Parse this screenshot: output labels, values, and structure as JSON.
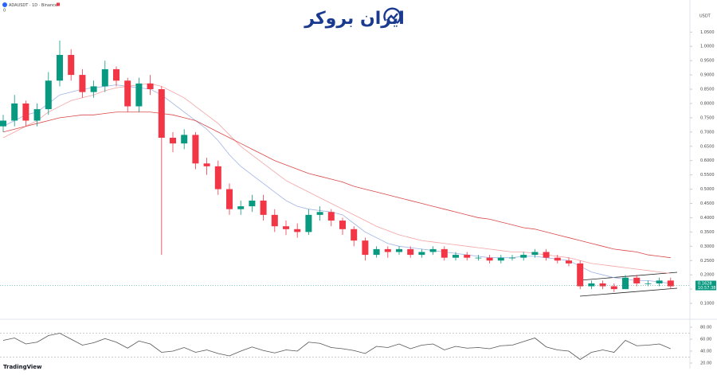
{
  "chart_data": [
    {
      "type": "candlestick",
      "title": "ADAUSDT · 1D · Binance",
      "subtitle": "0",
      "currency": "USDT",
      "brand": "ایران بروکر",
      "footer": "TradingView",
      "last_price": 0.1628,
      "countdown": "10:57:38",
      "ylim": [
        0.05,
        1.14
      ],
      "yticks": [
        {
          "value": 1.05,
          "label": "1.0500"
        },
        {
          "value": 1.0,
          "label": "1.0000"
        },
        {
          "value": 0.95,
          "label": "0.9500"
        },
        {
          "value": 0.9,
          "label": "0.9000"
        },
        {
          "value": 0.85,
          "label": "0.8500"
        },
        {
          "value": 0.8,
          "label": "0.8000"
        },
        {
          "value": 0.75,
          "label": "0.7500"
        },
        {
          "value": 0.7,
          "label": "0.7000"
        },
        {
          "value": 0.65,
          "label": "0.6500"
        },
        {
          "value": 0.6,
          "label": "0.6000"
        },
        {
          "value": 0.55,
          "label": "0.5500"
        },
        {
          "value": 0.5,
          "label": "0.5000"
        },
        {
          "value": 0.45,
          "label": "0.4500"
        },
        {
          "value": 0.4,
          "label": "0.4000"
        },
        {
          "value": 0.35,
          "label": "0.3500"
        },
        {
          "value": 0.3,
          "label": "0.3000"
        },
        {
          "value": 0.25,
          "label": "0.2500"
        },
        {
          "value": 0.2,
          "label": "0.2000"
        },
        {
          "value": 0.15,
          "label": "0.1500"
        },
        {
          "value": 0.1,
          "label": "0.1000"
        }
      ],
      "up_color": "#089981",
      "down_color": "#f23645",
      "open": [
        0.72,
        0.74,
        0.8,
        0.74,
        0.78,
        0.88,
        0.97,
        0.9,
        0.84,
        0.86,
        0.92,
        0.88,
        0.79,
        0.87,
        0.85,
        0.68,
        0.66,
        0.69,
        0.59,
        0.58,
        0.5,
        0.43,
        0.44,
        0.46,
        0.41,
        0.37,
        0.36,
        0.35,
        0.41,
        0.42,
        0.39,
        0.36,
        0.32,
        0.27,
        0.29,
        0.28,
        0.29,
        0.27,
        0.28,
        0.29,
        0.26,
        0.27,
        0.26,
        0.26,
        0.25,
        0.26,
        0.26,
        0.27,
        0.28,
        0.26,
        0.25,
        0.24,
        0.16,
        0.17,
        0.16,
        0.15,
        0.19,
        0.17,
        0.17,
        0.18
      ],
      "close": [
        0.74,
        0.8,
        0.74,
        0.78,
        0.88,
        0.97,
        0.9,
        0.84,
        0.86,
        0.92,
        0.88,
        0.79,
        0.87,
        0.85,
        0.68,
        0.66,
        0.69,
        0.59,
        0.58,
        0.5,
        0.43,
        0.44,
        0.46,
        0.41,
        0.37,
        0.36,
        0.35,
        0.41,
        0.42,
        0.39,
        0.36,
        0.32,
        0.27,
        0.29,
        0.28,
        0.29,
        0.27,
        0.28,
        0.29,
        0.26,
        0.27,
        0.26,
        0.26,
        0.25,
        0.26,
        0.26,
        0.27,
        0.28,
        0.26,
        0.25,
        0.24,
        0.16,
        0.17,
        0.16,
        0.15,
        0.19,
        0.17,
        0.17,
        0.18,
        0.16
      ],
      "high": [
        0.76,
        0.83,
        0.81,
        0.8,
        0.91,
        1.02,
        0.99,
        0.92,
        0.88,
        0.95,
        0.93,
        0.89,
        0.89,
        0.9,
        0.86,
        0.7,
        0.71,
        0.7,
        0.61,
        0.6,
        0.52,
        0.46,
        0.48,
        0.48,
        0.43,
        0.39,
        0.38,
        0.43,
        0.44,
        0.43,
        0.4,
        0.37,
        0.33,
        0.3,
        0.3,
        0.3,
        0.3,
        0.29,
        0.3,
        0.3,
        0.28,
        0.28,
        0.27,
        0.27,
        0.27,
        0.27,
        0.28,
        0.29,
        0.29,
        0.27,
        0.26,
        0.25,
        0.18,
        0.18,
        0.17,
        0.2,
        0.2,
        0.18,
        0.19,
        0.19
      ],
      "low": [
        0.7,
        0.72,
        0.72,
        0.72,
        0.76,
        0.86,
        0.88,
        0.82,
        0.82,
        0.84,
        0.86,
        0.77,
        0.77,
        0.83,
        0.27,
        0.63,
        0.64,
        0.57,
        0.55,
        0.48,
        0.41,
        0.41,
        0.42,
        0.39,
        0.35,
        0.34,
        0.33,
        0.34,
        0.39,
        0.37,
        0.34,
        0.3,
        0.25,
        0.26,
        0.26,
        0.27,
        0.26,
        0.26,
        0.27,
        0.25,
        0.25,
        0.25,
        0.25,
        0.24,
        0.24,
        0.25,
        0.25,
        0.26,
        0.25,
        0.24,
        0.23,
        0.15,
        0.15,
        0.15,
        0.14,
        0.15,
        0.16,
        0.16,
        0.16,
        0.15
      ],
      "series": [
        {
          "color": "#9fb3e6",
          "values": [
            0.72,
            0.74,
            0.76,
            0.77,
            0.8,
            0.83,
            0.84,
            0.85,
            0.855,
            0.86,
            0.865,
            0.86,
            0.855,
            0.85,
            0.83,
            0.8,
            0.77,
            0.74,
            0.71,
            0.67,
            0.62,
            0.58,
            0.55,
            0.52,
            0.49,
            0.46,
            0.44,
            0.43,
            0.425,
            0.42,
            0.41,
            0.38,
            0.35,
            0.33,
            0.31,
            0.3,
            0.295,
            0.29,
            0.285,
            0.28,
            0.275,
            0.27,
            0.265,
            0.26,
            0.26,
            0.26,
            0.265,
            0.265,
            0.26,
            0.255,
            0.25,
            0.23,
            0.21,
            0.2,
            0.19,
            0.185,
            0.18,
            0.18,
            0.175,
            0.17
          ]
        },
        {
          "color": "#f4a3a3",
          "values": [
            0.68,
            0.7,
            0.72,
            0.74,
            0.77,
            0.79,
            0.81,
            0.82,
            0.83,
            0.845,
            0.855,
            0.86,
            0.865,
            0.87,
            0.86,
            0.84,
            0.82,
            0.79,
            0.76,
            0.73,
            0.69,
            0.65,
            0.62,
            0.59,
            0.56,
            0.53,
            0.51,
            0.49,
            0.47,
            0.45,
            0.43,
            0.41,
            0.39,
            0.37,
            0.355,
            0.34,
            0.33,
            0.32,
            0.315,
            0.31,
            0.305,
            0.3,
            0.295,
            0.29,
            0.285,
            0.28,
            0.28,
            0.275,
            0.27,
            0.265,
            0.26,
            0.25,
            0.24,
            0.235,
            0.23,
            0.225,
            0.22,
            0.215,
            0.21,
            0.205
          ]
        },
        {
          "color": "#d94848",
          "values": [
            0.7,
            0.71,
            0.72,
            0.73,
            0.74,
            0.75,
            0.755,
            0.76,
            0.76,
            0.765,
            0.77,
            0.77,
            0.77,
            0.77,
            0.765,
            0.76,
            0.75,
            0.74,
            0.72,
            0.7,
            0.68,
            0.66,
            0.64,
            0.62,
            0.6,
            0.585,
            0.57,
            0.555,
            0.545,
            0.535,
            0.525,
            0.51,
            0.5,
            0.49,
            0.48,
            0.47,
            0.46,
            0.45,
            0.44,
            0.43,
            0.42,
            0.41,
            0.4,
            0.395,
            0.385,
            0.375,
            0.365,
            0.36,
            0.35,
            0.34,
            0.33,
            0.32,
            0.31,
            0.3,
            0.29,
            0.285,
            0.28,
            0.27,
            0.265,
            0.26
          ]
        }
      ]
    },
    {
      "type": "line",
      "ylim": [
        10,
        90
      ],
      "yticks": [
        {
          "value": 80,
          "label": "80.00"
        },
        {
          "value": 60,
          "label": "60.00"
        },
        {
          "value": 40,
          "label": "40.00"
        },
        {
          "value": 20,
          "label": "20.00"
        }
      ],
      "bands": [
        70,
        30
      ],
      "series": [
        {
          "color": "#555555",
          "values": [
            58,
            62,
            52,
            55,
            66,
            70,
            60,
            50,
            54,
            61,
            55,
            45,
            57,
            52,
            38,
            40,
            46,
            38,
            42,
            36,
            32,
            40,
            47,
            41,
            37,
            42,
            40,
            55,
            53,
            46,
            44,
            41,
            36,
            48,
            46,
            52,
            44,
            50,
            52,
            42,
            48,
            45,
            46,
            44,
            49,
            50,
            56,
            62,
            47,
            42,
            40,
            26,
            38,
            42,
            38,
            58,
            49,
            50,
            52,
            44
          ]
        }
      ]
    }
  ]
}
